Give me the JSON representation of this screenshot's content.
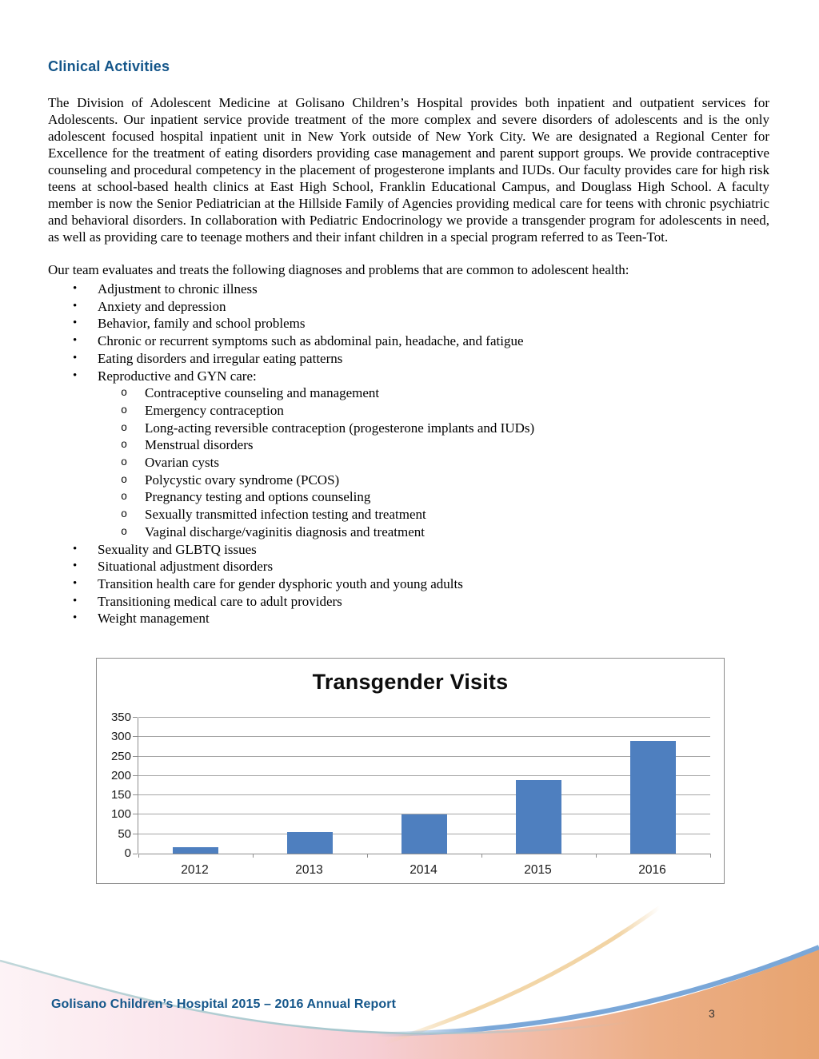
{
  "document": {
    "heading": "Clinical Activities",
    "paragraph": "The Division of Adolescent Medicine at Golisano Children’s Hospital provides both inpatient and outpatient services for Adolescents. Our inpatient service provide treatment of the more complex and severe disorders of adolescents and is the only adolescent focused hospital inpatient unit in New York outside of New York City. We are designated a Regional Center for Excellence for the treatment of eating disorders providing case management and parent support groups. We provide contraceptive counseling and procedural competency in the placement of progesterone implants and IUDs. Our faculty provides care for high risk teens at school-based health clinics at East High School, Franklin Educational Campus, and Douglass High School. A faculty member is now the Senior Pediatrician at the Hillside Family of Agencies providing medical care for teens with chronic psychiatric and behavioral disorders.  In collaboration with Pediatric Endocrinology we provide a transgender program for adolescents in need, as well as providing care to teenage mothers and their infant children in a special program referred to as Teen-Tot.",
    "list_intro": "Our team evaluates and treats the following diagnoses and problems that are common to adolescent health:",
    "bullets_top": [
      "Adjustment to chronic illness",
      "Anxiety and depression",
      "Behavior, family and school problems",
      "Chronic or recurrent symptoms such as abdominal pain, headache, and fatigue",
      "Eating disorders and irregular eating patterns",
      "Reproductive and GYN care:"
    ],
    "sub_bullets": [
      "Contraceptive counseling and management",
      "Emergency contraception",
      "Long-acting reversible contraception (progesterone implants and IUDs)",
      "Menstrual disorders",
      "Ovarian cysts",
      "Polycystic ovary syndrome (PCOS)",
      "Pregnancy testing and options counseling",
      "Sexually transmitted infection testing and treatment",
      "Vaginal discharge/vaginitis diagnosis and treatment"
    ],
    "bullets_bottom": [
      "Sexuality and GLBTQ issues",
      "Situational adjustment disorders",
      "Transition health care for gender dysphoric youth and young adults",
      "Transitioning medical care to adult providers",
      "Weight management"
    ]
  },
  "chart_data": {
    "type": "bar",
    "title": "Transgender Visits",
    "categories": [
      "2012",
      "2013",
      "2014",
      "2015",
      "2016"
    ],
    "values": [
      17,
      55,
      100,
      190,
      290
    ],
    "xlabel": "",
    "ylabel": "",
    "ylim": [
      0,
      350
    ],
    "ytick_step": 50,
    "grid": true,
    "legend_position": "none",
    "bar_color": "#4e7fbf"
  },
  "footer": {
    "report_title": "Golisano Children’s Hospital 2015 – 2016 Annual Report",
    "page_number": "3"
  },
  "colors": {
    "heading_blue": "#14568a",
    "footer_text_blue": "#14568a",
    "bar_blue": "#4e7fbf",
    "gridline_grey": "#a6a6a6",
    "chart_border_grey": "#8c8c8c",
    "swoosh_blue": "#7aa7d8",
    "swoosh_teal": "#a5c6cd",
    "swoosh_gold": "#f0cf9a",
    "gradient_left_pink": "#fdf3f6",
    "gradient_right_orange": "#e7a470"
  }
}
